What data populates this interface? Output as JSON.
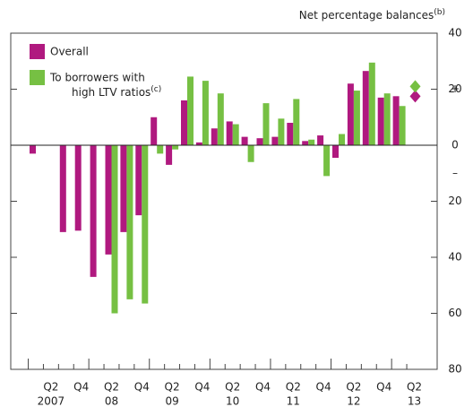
{
  "chart_data": {
    "type": "bar",
    "y_axis_label": "Net percentage balances",
    "y_axis_label_note": "(b)",
    "sign_labels": [
      "+",
      "–"
    ],
    "categories": [
      null,
      "Q2",
      null,
      "Q4",
      null,
      "Q2",
      null,
      "Q4",
      null,
      "Q2",
      null,
      "Q4",
      null,
      "Q2",
      null,
      "Q4",
      null,
      "Q2",
      null,
      "Q4",
      null,
      "Q2",
      null,
      "Q4",
      null,
      "Q2"
    ],
    "years": [
      null,
      "2007",
      null,
      null,
      null,
      "08",
      null,
      null,
      null,
      "09",
      null,
      null,
      null,
      "10",
      null,
      null,
      null,
      "11",
      null,
      null,
      null,
      "12",
      null,
      null,
      null,
      "13"
    ],
    "series": [
      {
        "name": "Overall",
        "color": "#b0197f",
        "values": [
          -3,
          null,
          -31,
          -30.5,
          -47,
          -39,
          -31,
          -25,
          10,
          -7,
          16,
          1,
          6,
          8.5,
          3,
          2.5,
          3,
          8,
          1.5,
          3.5,
          -4.5,
          22,
          26.5,
          17,
          17.5,
          null
        ],
        "diamond": 17.5
      },
      {
        "name": "To borrowers with",
        "name_line2": "high LTV ratios",
        "name_note": "(c)",
        "color": "#76c043",
        "values": [
          null,
          null,
          null,
          null,
          null,
          -60,
          -55,
          -56.5,
          -3,
          -1.5,
          24.5,
          23,
          18.5,
          7.5,
          -6,
          15,
          9.5,
          16.5,
          2,
          -11,
          4,
          19.5,
          29.5,
          18.5,
          14,
          null
        ],
        "diamond": 21
      }
    ],
    "ylim": [
      -80,
      40
    ],
    "yticks": [
      40,
      20,
      0,
      {
        "value": -20,
        "label": "20"
      },
      {
        "value": -40,
        "label": "40"
      },
      {
        "value": -60,
        "label": "60"
      },
      {
        "value": -80,
        "label": "80"
      }
    ]
  }
}
